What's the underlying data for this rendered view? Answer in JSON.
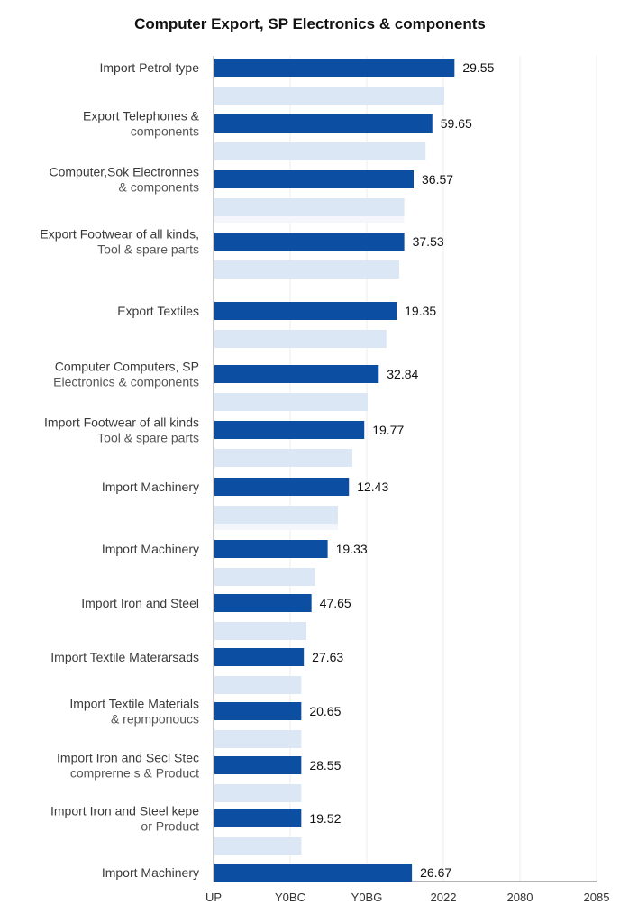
{
  "chart_data": {
    "type": "bar",
    "orientation": "horizontal",
    "title": "Computer Export, SP Electronics & components",
    "categories": [
      [
        "Import Petrol type"
      ],
      [
        "Export Telephones &",
        "components"
      ],
      [
        "Computer,Sok Electronnes",
        "& components"
      ],
      [
        "Export Footwear of all kinds,",
        "Tool & spare parts"
      ],
      [
        "Export Textiles"
      ],
      [
        "Computer Computers, SP",
        "Electronics & components"
      ],
      [
        "Import Footwear of all kinds",
        "Tool & spare parts"
      ],
      [
        "Import Machinery"
      ],
      [
        "Import Machinery"
      ],
      [
        "Import Iron and Steel"
      ],
      [
        "Import Textile Materarsads"
      ],
      [
        "Import Textile Materials",
        "& repmponoucs"
      ],
      [
        "Import Iron and Secl Stec",
        "comprerne s & Product"
      ],
      [
        "Import Iron and Steel kepe",
        "or Product"
      ],
      [
        "Import Machinery"
      ]
    ],
    "value_labels": [
      "29.55",
      "59.65",
      "36.57",
      "37.53",
      "19.35",
      "32.84",
      "19.77",
      "12.43",
      "19.33",
      "47.65",
      "27.63",
      "20.65",
      "28.55",
      "19.52",
      "26.67"
    ],
    "series": [
      {
        "values": [
          28.2,
          25.6,
          23.4,
          22.3,
          21.4,
          19.3,
          17.6,
          15.8,
          13.3,
          11.4,
          10.5,
          10.2,
          10.2,
          10.2,
          23.2
        ],
        "color": "#0b4ea2"
      },
      {
        "values": [
          27.0,
          24.8,
          22.3,
          21.7,
          20.2,
          18.0,
          16.2,
          14.5,
          11.8,
          10.8,
          10.2,
          10.2,
          10.2,
          10.2,
          null
        ],
        "color": "#dbe7f4"
      }
    ],
    "faint_bars": [
      22.3,
      14.5
    ],
    "x_tick_labels": [
      "UP",
      "Y0BC",
      "Y0BG",
      "2022",
      "2080",
      "2085"
    ],
    "xlim": [
      0,
      45
    ],
    "grid": true
  }
}
